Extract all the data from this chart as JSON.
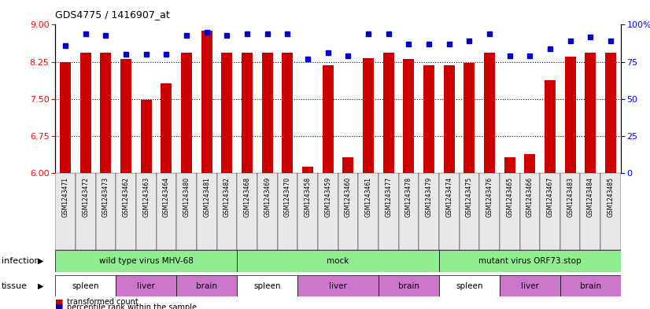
{
  "title": "GDS4775 / 1416907_at",
  "samples": [
    "GSM1243471",
    "GSM1243472",
    "GSM1243473",
    "GSM1243462",
    "GSM1243463",
    "GSM1243464",
    "GSM1243480",
    "GSM1243481",
    "GSM1243482",
    "GSM1243468",
    "GSM1243469",
    "GSM1243470",
    "GSM1243458",
    "GSM1243459",
    "GSM1243460",
    "GSM1243461",
    "GSM1243477",
    "GSM1243478",
    "GSM1243479",
    "GSM1243474",
    "GSM1243475",
    "GSM1243476",
    "GSM1243465",
    "GSM1243466",
    "GSM1243467",
    "GSM1243483",
    "GSM1243484",
    "GSM1243485"
  ],
  "red_values": [
    8.25,
    8.44,
    8.44,
    8.3,
    7.48,
    7.82,
    8.44,
    8.88,
    8.44,
    8.44,
    8.44,
    8.44,
    6.13,
    8.18,
    6.32,
    8.32,
    8.44,
    8.3,
    8.18,
    8.18,
    8.22,
    8.44,
    6.32,
    6.38,
    7.88,
    8.35,
    8.44,
    8.44
  ],
  "blue_values": [
    86,
    94,
    93,
    80,
    80,
    80,
    93,
    95,
    93,
    94,
    94,
    94,
    77,
    81,
    79,
    94,
    94,
    87,
    87,
    87,
    89,
    94,
    79,
    79,
    84,
    89,
    92,
    89
  ],
  "ymin": 6,
  "ymax": 9,
  "yticks_left": [
    6,
    6.75,
    7.5,
    8.25,
    9
  ],
  "yticks_right": [
    0,
    25,
    50,
    75,
    100
  ],
  "dotted_lines": [
    6.75,
    7.5,
    8.25
  ],
  "infection_groups": [
    {
      "label": "wild type virus MHV-68",
      "start": 0,
      "end": 9,
      "color": "#90ee90"
    },
    {
      "label": "mock",
      "start": 9,
      "end": 19,
      "color": "#90ee90"
    },
    {
      "label": "mutant virus ORF73.stop",
      "start": 19,
      "end": 28,
      "color": "#90ee90"
    }
  ],
  "tissue_groups": [
    {
      "label": "spleen",
      "start": 0,
      "end": 3,
      "color": "#ffffff"
    },
    {
      "label": "liver",
      "start": 3,
      "end": 6,
      "color": "#cc77cc"
    },
    {
      "label": "brain",
      "start": 6,
      "end": 9,
      "color": "#cc77cc"
    },
    {
      "label": "spleen",
      "start": 9,
      "end": 12,
      "color": "#ffffff"
    },
    {
      "label": "liver",
      "start": 12,
      "end": 16,
      "color": "#cc77cc"
    },
    {
      "label": "brain",
      "start": 16,
      "end": 19,
      "color": "#cc77cc"
    },
    {
      "label": "spleen",
      "start": 19,
      "end": 22,
      "color": "#ffffff"
    },
    {
      "label": "liver",
      "start": 22,
      "end": 25,
      "color": "#cc77cc"
    },
    {
      "label": "brain",
      "start": 25,
      "end": 28,
      "color": "#cc77cc"
    }
  ],
  "bar_color": "#cc0000",
  "dot_color": "#0000cc",
  "infection_label": "infection",
  "tissue_label": "tissue",
  "xtick_bg": "#d3d3d3",
  "infection_color": "#90ee90"
}
